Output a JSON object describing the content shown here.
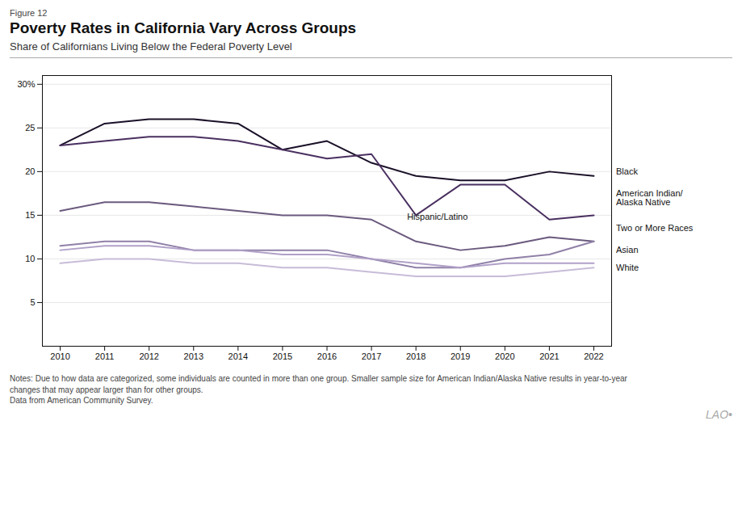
{
  "chart_data": {
    "type": "line",
    "figure_label": "Figure 12",
    "title": "Poverty Rates in California Vary Across Groups",
    "subtitle": "Share of Californians Living Below the Federal Poverty Level",
    "x": [
      2010,
      2011,
      2012,
      2013,
      2014,
      2015,
      2016,
      2017,
      2018,
      2019,
      2020,
      2021,
      2022
    ],
    "xlim": [
      2009.6,
      2022.4
    ],
    "xticks": [
      2010,
      2011,
      2012,
      2013,
      2014,
      2015,
      2016,
      2017,
      2018,
      2019,
      2020,
      2021,
      2022
    ],
    "ylim": [
      0,
      31
    ],
    "yticks": [
      5,
      10,
      15,
      20,
      25,
      {
        "value": 30,
        "label": "30%"
      }
    ],
    "grid": true,
    "series": [
      {
        "name": "Black",
        "color": "#1a1028",
        "values": [
          23.0,
          25.5,
          26.0,
          26.0,
          25.5,
          22.5,
          23.5,
          21.0,
          19.5,
          19.0,
          19.0,
          20.0,
          19.5
        ]
      },
      {
        "name": "American Indian/\nAlaska Native",
        "color": "#4a3060",
        "values": [
          23.0,
          23.5,
          24.0,
          24.0,
          23.5,
          22.5,
          21.5,
          22.0,
          15.0,
          18.5,
          18.5,
          14.5,
          15.0
        ]
      },
      {
        "name": "Hispanic/Latino",
        "color": "#6b5a7e",
        "values": [
          15.5,
          16.5,
          16.5,
          16.0,
          15.5,
          15.0,
          15.0,
          14.5,
          12.0,
          11.0,
          11.5,
          12.5,
          12.0
        ]
      },
      {
        "name": "Two or More Races",
        "color": "#9080a8",
        "values": [
          11.5,
          12.0,
          12.0,
          11.0,
          11.0,
          11.0,
          11.0,
          10.0,
          9.0,
          9.0,
          10.0,
          10.5,
          12.0
        ]
      },
      {
        "name": "Asian",
        "color": "#b0a0c8",
        "values": [
          11.0,
          11.5,
          11.5,
          11.0,
          11.0,
          10.5,
          10.5,
          10.0,
          9.5,
          9.0,
          9.5,
          9.5,
          9.5
        ]
      },
      {
        "name": "White",
        "color": "#c8bcd8",
        "values": [
          9.5,
          10.0,
          10.0,
          9.5,
          9.5,
          9.0,
          9.0,
          8.5,
          8.0,
          8.0,
          8.0,
          8.5,
          9.0
        ]
      }
    ],
    "annotations": [
      {
        "text": "Black",
        "x": 2022.5,
        "y": 20.0
      },
      {
        "text": "American Indian/\nAlaska Native",
        "x": 2022.5,
        "y": 17.0
      },
      {
        "text": "Two or More Races",
        "x": 2022.5,
        "y": 13.5
      },
      {
        "text": "Asian",
        "x": 2022.5,
        "y": 11.0
      },
      {
        "text": "White",
        "x": 2022.5,
        "y": 9.0
      },
      {
        "text": "Hispanic/Latino",
        "x": 2017.8,
        "y": 14.8
      }
    ],
    "notes": [
      "Notes: Due to how data are categorized, some individuals are counted in more than one group. Smaller sample size for American Indian/Alaska Native results in year-to-year",
      "changes that may appear larger than for other groups.",
      "Data from American Community Survey."
    ],
    "watermark": "LAO•"
  }
}
